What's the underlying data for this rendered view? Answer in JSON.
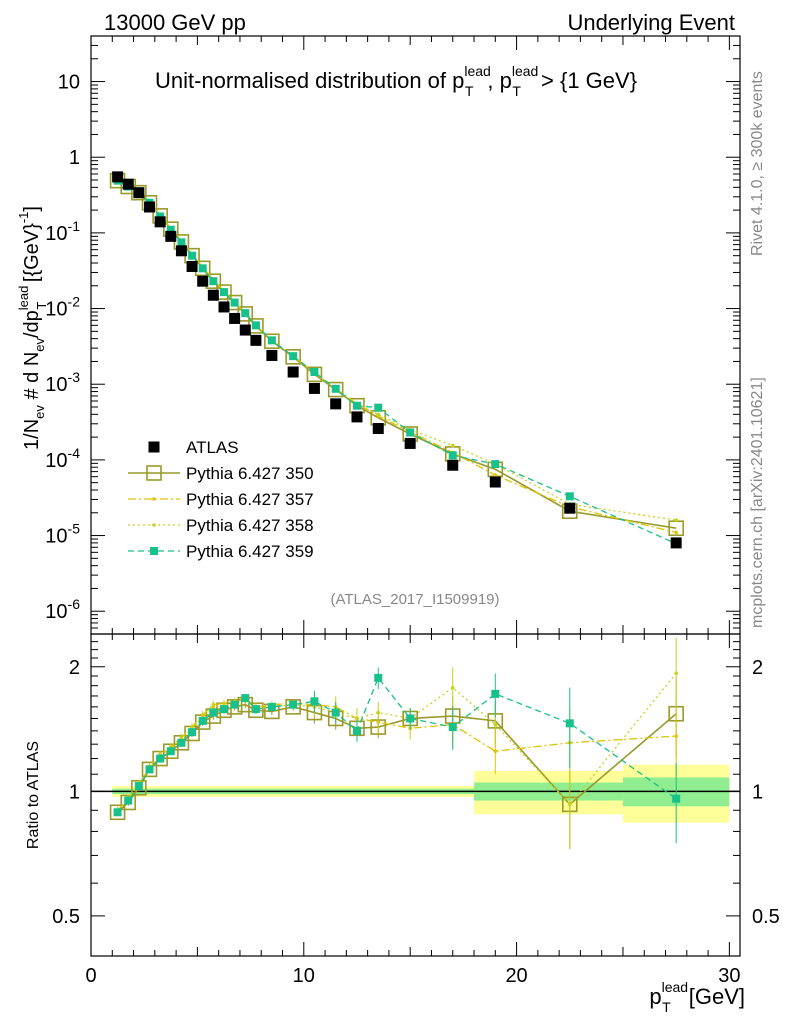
{
  "header": {
    "left_title": "13000 GeV pp",
    "right_title": "Underlying Event"
  },
  "side_labels": {
    "rivet": "Rivet 4.1.0, ≥ 300k events",
    "mcplots": "mcplots.cern.ch [arXiv:2401.10621]"
  },
  "plot_title": {
    "main": "Unit-normalised distribution of p",
    "sup1": "lead",
    "sub1": "T",
    "sep": ", p",
    "sup2": "lead",
    "sub2": "T",
    "cut": " > {1 GeV}"
  },
  "analysis_tag": "(ATLAS_2017_I1509919)",
  "colors": {
    "atlas": "#000000",
    "p350": "#9a9a2a",
    "p357": "#e0c400",
    "p358": "#c8d21e",
    "p359": "#18c08a",
    "band_dark": "#90ee90",
    "band_light": "#ffff99"
  },
  "chart_data": [
    {
      "type": "scatter",
      "title": "Unit-normalised distribution of pT lead, pT lead > {1 GeV}",
      "xlabel": "p_T^lead [GeV]",
      "ylabel": "1/N_ev # d N_ev/dp_T^lead [{GeV}^-1]",
      "yscale": "log",
      "xlim": [
        0,
        30.5
      ],
      "ylim": [
        5e-07,
        40
      ],
      "x_tick_labels": [
        "0",
        "10",
        "20",
        "30"
      ],
      "y_tick_labels": [
        "10^-6",
        "10^-5",
        "10^-4",
        "10^-3",
        "10^-2",
        "10^-1",
        "1",
        "10"
      ],
      "x": [
        1.25,
        1.75,
        2.25,
        2.75,
        3.25,
        3.75,
        4.25,
        4.75,
        5.25,
        5.75,
        6.25,
        6.75,
        7.25,
        7.75,
        8.5,
        9.5,
        10.5,
        11.5,
        12.5,
        13.5,
        15.0,
        17.0,
        19.0,
        22.5,
        27.5
      ],
      "series": [
        {
          "name": "ATLAS",
          "style": "square-marker",
          "values": [
            0.55,
            0.44,
            0.34,
            0.22,
            0.14,
            0.09,
            0.058,
            0.036,
            0.023,
            0.015,
            0.0105,
            0.0074,
            0.0052,
            0.0038,
            0.0024,
            0.00145,
            0.00088,
            0.00055,
            0.00037,
            0.00026,
            0.000165,
            8.5e-05,
            5.1e-05,
            2.3e-05,
            8e-06
          ]
        },
        {
          "name": "Pythia 6.427 350",
          "style": "solid-open-square",
          "values": [
            0.49,
            0.41,
            0.34,
            0.25,
            0.168,
            0.112,
            0.076,
            0.05,
            0.034,
            0.023,
            0.0165,
            0.012,
            0.0085,
            0.0059,
            0.0037,
            0.0023,
            0.00135,
            0.00085,
            0.00052,
            0.00036,
            0.00022,
            0.00012,
            7.5e-05,
            2.1e-05,
            1.25e-05
          ]
        },
        {
          "name": "Pythia 6.427 357",
          "style": "dash-dot",
          "values": [
            0.5,
            0.42,
            0.35,
            0.255,
            0.172,
            0.115,
            0.078,
            0.052,
            0.0355,
            0.024,
            0.017,
            0.0122,
            0.0087,
            0.006,
            0.0038,
            0.00235,
            0.00142,
            0.00088,
            0.00055,
            0.00038,
            0.000235,
            0.000125,
            6.3e-05,
            2.4e-05,
            1.1e-05
          ]
        },
        {
          "name": "Pythia 6.427 358",
          "style": "dotted",
          "values": [
            0.5,
            0.42,
            0.35,
            0.255,
            0.17,
            0.114,
            0.077,
            0.051,
            0.035,
            0.0238,
            0.0168,
            0.012,
            0.0086,
            0.006,
            0.0038,
            0.00235,
            0.0014,
            0.00088,
            0.00055,
            0.0004,
            0.00025,
            0.000155,
            8.8e-05,
            2.6e-05,
            1.6e-05
          ]
        },
        {
          "name": "Pythia 6.427 359",
          "style": "dashed-filled-square",
          "values": [
            0.49,
            0.41,
            0.34,
            0.25,
            0.165,
            0.11,
            0.075,
            0.05,
            0.034,
            0.023,
            0.0165,
            0.012,
            0.0087,
            0.006,
            0.0038,
            0.00235,
            0.00145,
            0.00087,
            0.00052,
            0.00049,
            0.00023,
            0.000115,
            8.8e-05,
            3.3e-05,
            7.8e-06
          ]
        }
      ],
      "legend_position": "lower-left"
    },
    {
      "type": "scatter",
      "title": "",
      "xlabel": "p_T^lead [GeV]",
      "ylabel": "Ratio to ATLAS",
      "yscale": "log",
      "xlim": [
        0,
        30.5
      ],
      "ylim": [
        0.4,
        2.4
      ],
      "y_tick_labels": [
        "0.5",
        "1",
        "2"
      ],
      "x": [
        1.25,
        1.75,
        2.25,
        2.75,
        3.25,
        3.75,
        4.25,
        4.75,
        5.25,
        5.75,
        6.25,
        6.75,
        7.25,
        7.75,
        8.5,
        9.5,
        10.5,
        11.5,
        12.5,
        13.5,
        15.0,
        17.0,
        19.0,
        22.5,
        27.5
      ],
      "reference_band": {
        "x_edges": [
          1,
          18,
          25,
          30
        ],
        "stat_halfwidth": [
          0.015,
          0.05,
          0.08
        ],
        "total_halfwidth": [
          0.03,
          0.12,
          0.16
        ]
      },
      "series": [
        {
          "name": "Pythia 6.427 350",
          "values": [
            0.89,
            0.94,
            1.02,
            1.13,
            1.2,
            1.25,
            1.31,
            1.38,
            1.47,
            1.52,
            1.57,
            1.6,
            1.62,
            1.57,
            1.56,
            1.6,
            1.55,
            1.5,
            1.42,
            1.43,
            1.5,
            1.52,
            1.48,
            0.93,
            1.54
          ]
        },
        {
          "name": "Pythia 6.427 357",
          "values": [
            0.9,
            0.96,
            1.04,
            1.15,
            1.23,
            1.28,
            1.35,
            1.43,
            1.53,
            1.62,
            1.63,
            1.65,
            1.68,
            1.6,
            1.62,
            1.63,
            1.62,
            1.6,
            1.5,
            1.47,
            1.42,
            1.45,
            1.25,
            1.31,
            1.36
          ]
        },
        {
          "name": "Pythia 6.427 358",
          "values": [
            0.9,
            0.96,
            1.04,
            1.14,
            1.22,
            1.27,
            1.34,
            1.42,
            1.51,
            1.6,
            1.61,
            1.63,
            1.66,
            1.59,
            1.6,
            1.62,
            1.6,
            1.55,
            1.5,
            1.55,
            1.5,
            1.78,
            1.45,
            0.93,
            1.93
          ]
        },
        {
          "name": "Pythia 6.427 359",
          "values": [
            0.89,
            0.95,
            1.03,
            1.13,
            1.2,
            1.25,
            1.31,
            1.39,
            1.48,
            1.55,
            1.58,
            1.62,
            1.68,
            1.58,
            1.6,
            1.62,
            1.65,
            1.55,
            1.4,
            1.88,
            1.5,
            1.43,
            1.72,
            1.46,
            0.96
          ]
        }
      ]
    }
  ],
  "legend": [
    {
      "label": "ATLAS"
    },
    {
      "label": "Pythia 6.427 350"
    },
    {
      "label": "Pythia 6.427 357"
    },
    {
      "label": "Pythia 6.427 358"
    },
    {
      "label": "Pythia 6.427 359"
    }
  ],
  "axes": {
    "main_ylabel": "1/N",
    "main_ylabel_parts": {
      "ev_sub": "ev",
      "mid": " # d N",
      "ev_sub2": "ev",
      "slash": "/dp",
      "lead_sup": "lead",
      "t_sub": "T",
      "unit": " [{GeV}",
      "unit_sup": "-1",
      "close": "]"
    },
    "ratio_ylabel": "Ratio to ATLAS",
    "xlabel_p": "p",
    "xlabel_sup": "lead",
    "xlabel_sub": "T",
    "xlabel_unit": " [GeV]"
  }
}
